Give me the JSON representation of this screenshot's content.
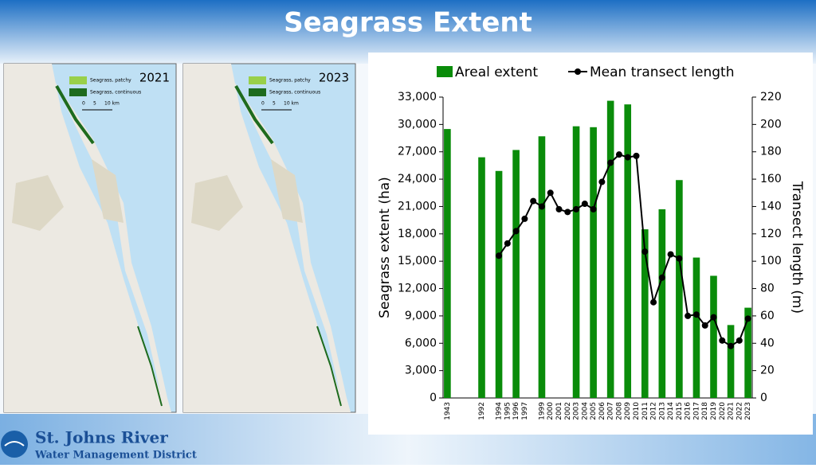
{
  "title": "Seagrass Extent",
  "maps": [
    {
      "year": "2021",
      "legend": [
        "Seagrass, patchy",
        "Seagrass, continuous"
      ],
      "scale": [
        "0",
        "5",
        "10 km"
      ]
    },
    {
      "year": "2023",
      "legend": [
        "Seagrass, patchy",
        "Seagrass, continuous"
      ],
      "scale": [
        "0",
        "5",
        "10 km"
      ]
    }
  ],
  "logo": {
    "name": "St. Johns River",
    "subtitle": "Water Management District"
  },
  "chart_data": {
    "type": "bar",
    "categories": [
      "1943",
      null,
      null,
      null,
      "1992",
      null,
      "1994",
      "1995",
      "1996",
      "1997",
      null,
      "1999",
      "2000",
      "2001",
      "2002",
      "2003",
      "2004",
      "2005",
      "2006",
      "2007",
      "2008",
      "2009",
      "2010",
      "2011",
      "2012",
      "2013",
      "2014",
      "2015",
      "2016",
      "2017",
      "2018",
      "2019",
      "2020",
      "2021",
      "2022",
      "2023"
    ],
    "series": [
      {
        "name": "Areal extent",
        "color": "#0a8c0a",
        "values": [
          29500,
          null,
          null,
          null,
          26400,
          null,
          24900,
          null,
          27200,
          null,
          null,
          28700,
          null,
          null,
          null,
          29800,
          null,
          29700,
          null,
          32600,
          null,
          32200,
          null,
          18500,
          null,
          20700,
          null,
          23900,
          null,
          15400,
          null,
          13400,
          null,
          8000,
          null,
          9900
        ]
      },
      {
        "name": "Mean transect length",
        "color": "#000000",
        "type": "line",
        "axis": "y2",
        "values": [
          null,
          null,
          null,
          null,
          null,
          null,
          104,
          113,
          122,
          131,
          144,
          140,
          150,
          138,
          136,
          138,
          142,
          138,
          158,
          172,
          178,
          176,
          177,
          107,
          70,
          88,
          105,
          102,
          60,
          61,
          53,
          59,
          42,
          38,
          42,
          58
        ]
      }
    ],
    "y_label": "Seagrass extent (ha)",
    "y2_label": "Transect length (m)",
    "ylim": [
      0,
      33000
    ],
    "yticks": [
      0,
      {
        "value": 3000,
        "label": "3,000"
      },
      {
        "value": 6000,
        "label": "6,000"
      },
      {
        "value": 9000,
        "label": "9,000"
      },
      {
        "value": 12000,
        "label": "12,000"
      },
      {
        "value": 15000,
        "label": "15,000"
      },
      {
        "value": 18000,
        "label": "18,000"
      },
      {
        "value": 21000,
        "label": "21,000"
      },
      {
        "value": 24000,
        "label": "24,000"
      },
      {
        "value": 27000,
        "label": "27,000"
      },
      {
        "value": 30000,
        "label": "30,000"
      },
      {
        "value": 33000,
        "label": "33,000"
      }
    ],
    "y2lim": [
      0,
      220
    ],
    "y2ticks": [
      0,
      20,
      40,
      60,
      80,
      100,
      120,
      140,
      160,
      180,
      200,
      220
    ],
    "legend": "top"
  }
}
